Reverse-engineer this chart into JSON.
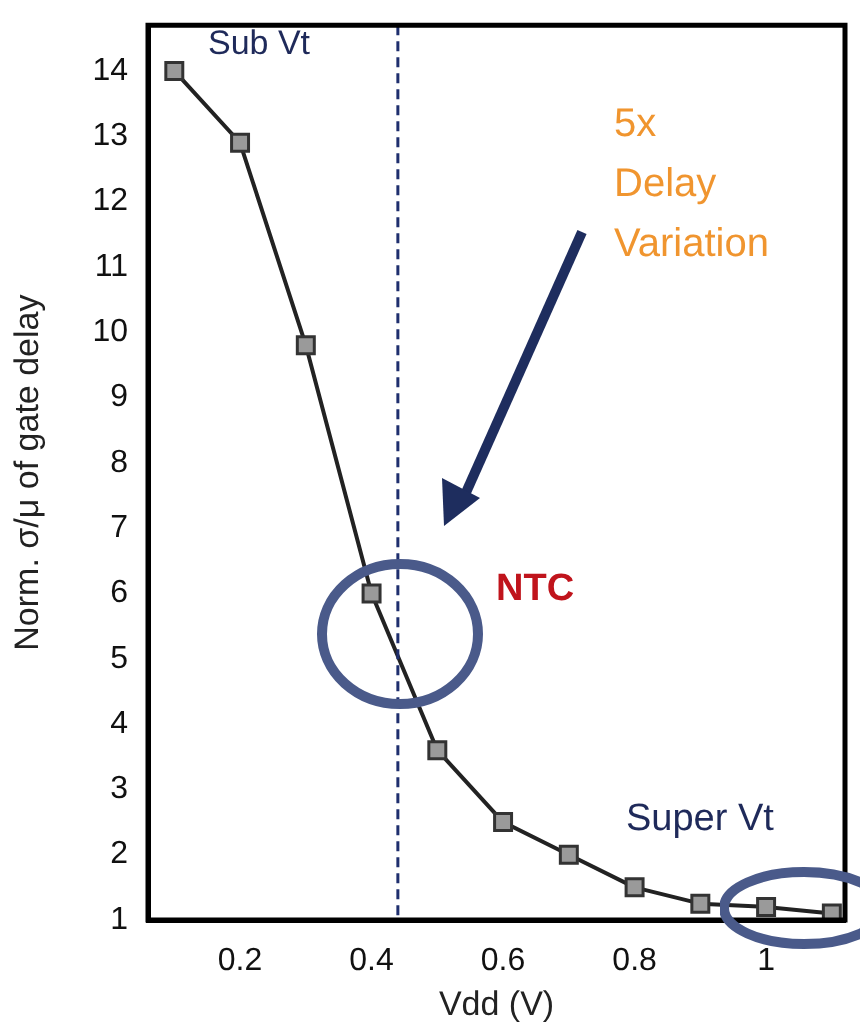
{
  "chart_data": {
    "type": "line",
    "xlabel": "Vdd (V)",
    "ylabel": "Norm. σ/μ of gate delay",
    "x": [
      0.1,
      0.2,
      0.3,
      0.4,
      0.5,
      0.6,
      0.7,
      0.8,
      0.9,
      1.0,
      1.1
    ],
    "series": [
      {
        "color": "#222222",
        "values": [
          14,
          12.9,
          9.8,
          6,
          3.6,
          2.5,
          2,
          1.5,
          1.25,
          1.2,
          1.1
        ]
      }
    ],
    "xlim": [
      0.06,
      1.12
    ],
    "xticks": [
      0.2,
      0.4,
      0.6,
      0.8,
      1
    ],
    "ylim": [
      1,
      14.7
    ],
    "yticks": [
      1,
      2,
      3,
      4,
      5,
      6,
      7,
      8,
      9,
      10,
      11,
      12,
      13,
      14
    ],
    "ref_lines": [
      {
        "axis": "x",
        "value": 0.44,
        "color": "#1f2f6e",
        "line_style": "dashed"
      }
    ],
    "annotations": [
      "Sub Vt",
      "5x Delay Variation",
      "NTC",
      "Super Vt"
    ],
    "grid": false,
    "legend": false,
    "marker": "square",
    "line_style": "solid"
  }
}
